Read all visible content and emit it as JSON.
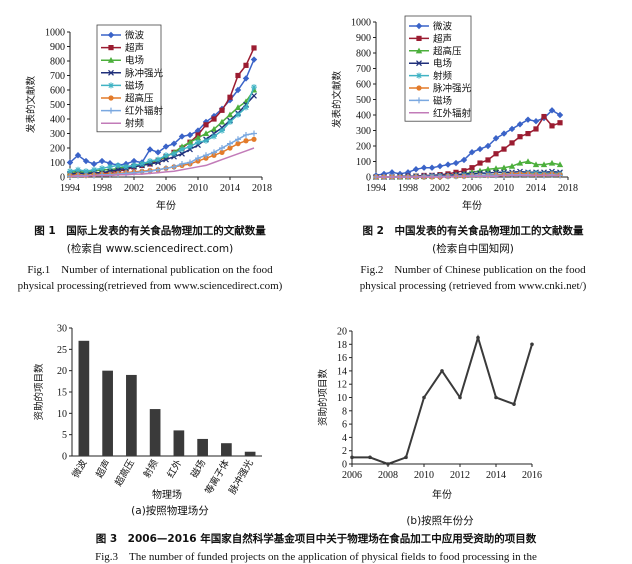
{
  "chart_data": [
    {
      "type": "line",
      "id": "fig1",
      "xlabel": "年份",
      "ylabel": "发表的文献数",
      "xlim": [
        1994,
        2018
      ],
      "ylim": [
        0,
        1000
      ],
      "xticks": [
        1994,
        1998,
        2002,
        2006,
        2010,
        2014,
        2018
      ],
      "yticks": [
        0,
        100,
        200,
        300,
        400,
        500,
        600,
        700,
        800,
        900,
        1000
      ],
      "legend_position": "top-left",
      "x": [
        1994,
        1995,
        1996,
        1997,
        1998,
        1999,
        2000,
        2001,
        2002,
        2003,
        2004,
        2005,
        2006,
        2007,
        2008,
        2009,
        2010,
        2011,
        2012,
        2013,
        2014,
        2015,
        2016,
        2017
      ],
      "series": [
        {
          "name": "微波",
          "color": "#3a63c8",
          "marker": "diamond",
          "values": [
            100,
            150,
            110,
            90,
            110,
            95,
            80,
            90,
            110,
            100,
            190,
            170,
            210,
            230,
            280,
            290,
            320,
            380,
            420,
            470,
            530,
            600,
            680,
            810
          ]
        },
        {
          "name": "超声",
          "color": "#9b1c31",
          "marker": "square",
          "values": [
            20,
            30,
            20,
            30,
            25,
            30,
            40,
            50,
            70,
            80,
            90,
            110,
            140,
            170,
            200,
            240,
            290,
            360,
            400,
            460,
            550,
            700,
            770,
            890
          ]
        },
        {
          "name": "电场",
          "color": "#4caf3c",
          "marker": "triangle",
          "values": [
            30,
            40,
            30,
            40,
            50,
            50,
            60,
            70,
            80,
            90,
            100,
            120,
            140,
            170,
            210,
            240,
            270,
            300,
            330,
            380,
            430,
            480,
            520,
            600
          ]
        },
        {
          "name": "脉冲强光",
          "color": "#1f2f7a",
          "marker": "x",
          "values": [
            20,
            25,
            25,
            30,
            30,
            40,
            50,
            60,
            70,
            80,
            90,
            100,
            120,
            140,
            160,
            190,
            220,
            260,
            300,
            340,
            390,
            440,
            500,
            560
          ]
        },
        {
          "name": "磁场",
          "color": "#40b3c4",
          "marker": "star",
          "values": [
            40,
            50,
            40,
            50,
            60,
            70,
            80,
            70,
            80,
            90,
            110,
            120,
            150,
            160,
            190,
            210,
            240,
            250,
            280,
            320,
            380,
            430,
            480,
            620
          ]
        },
        {
          "name": "超高压",
          "color": "#e37b2a",
          "marker": "circle",
          "values": [
            10,
            15,
            10,
            15,
            20,
            20,
            25,
            30,
            35,
            40,
            45,
            50,
            60,
            70,
            80,
            90,
            110,
            130,
            150,
            170,
            200,
            230,
            250,
            260
          ]
        },
        {
          "name": "红外辐射",
          "color": "#7aa8e0",
          "marker": "plus",
          "values": [
            5,
            10,
            10,
            10,
            15,
            15,
            20,
            25,
            30,
            35,
            40,
            50,
            60,
            70,
            90,
            100,
            130,
            150,
            170,
            200,
            230,
            260,
            290,
            300
          ]
        },
        {
          "name": "射频",
          "color": "#c27bb8",
          "marker": "none",
          "values": [
            5,
            5,
            5,
            10,
            10,
            10,
            15,
            15,
            20,
            20,
            25,
            30,
            35,
            40,
            50,
            60,
            70,
            80,
            100,
            120,
            140,
            160,
            180,
            200
          ]
        }
      ]
    },
    {
      "type": "line",
      "id": "fig2",
      "xlabel": "年份",
      "ylabel": "发表的文献数",
      "xlim": [
        1994,
        2018
      ],
      "ylim": [
        0,
        1000
      ],
      "xticks": [
        1994,
        1998,
        2002,
        2006,
        2010,
        2014,
        2018
      ],
      "yticks": [
        0,
        100,
        200,
        300,
        400,
        500,
        600,
        700,
        800,
        900,
        1000
      ],
      "legend_position": "top-left",
      "x": [
        1994,
        1995,
        1996,
        1997,
        1998,
        1999,
        2000,
        2001,
        2002,
        2003,
        2004,
        2005,
        2006,
        2007,
        2008,
        2009,
        2010,
        2011,
        2012,
        2013,
        2014,
        2015,
        2016,
        2017
      ],
      "series": [
        {
          "name": "微波",
          "color": "#3a63c8",
          "marker": "diamond",
          "values": [
            10,
            20,
            30,
            20,
            30,
            50,
            60,
            60,
            70,
            80,
            90,
            110,
            160,
            180,
            200,
            250,
            280,
            310,
            340,
            370,
            360,
            380,
            430,
            400
          ]
        },
        {
          "name": "超声",
          "color": "#9b1c31",
          "marker": "square",
          "values": [
            0,
            0,
            0,
            0,
            5,
            5,
            10,
            10,
            15,
            20,
            30,
            40,
            60,
            90,
            110,
            150,
            180,
            220,
            260,
            280,
            310,
            390,
            330,
            350
          ]
        },
        {
          "name": "超高压",
          "color": "#4caf3c",
          "marker": "triangle",
          "values": [
            0,
            0,
            0,
            0,
            0,
            5,
            5,
            5,
            10,
            10,
            15,
            20,
            30,
            40,
            50,
            55,
            60,
            70,
            90,
            100,
            80,
            80,
            90,
            80
          ]
        },
        {
          "name": "电场",
          "color": "#1f2f7a",
          "marker": "x",
          "values": [
            0,
            0,
            0,
            5,
            5,
            5,
            5,
            10,
            10,
            10,
            15,
            20,
            20,
            25,
            25,
            30,
            30,
            30,
            35,
            30,
            30,
            30,
            35,
            30
          ]
        },
        {
          "name": "射频",
          "color": "#40b3c4",
          "marker": "star",
          "values": [
            0,
            0,
            0,
            0,
            0,
            0,
            0,
            5,
            5,
            5,
            5,
            10,
            10,
            10,
            15,
            15,
            20,
            20,
            20,
            25,
            25,
            20,
            25,
            20
          ]
        },
        {
          "name": "脉冲强光",
          "color": "#e37b2a",
          "marker": "circle",
          "values": [
            0,
            0,
            0,
            0,
            0,
            0,
            0,
            0,
            0,
            5,
            5,
            5,
            10,
            10,
            10,
            15,
            15,
            20,
            20,
            20,
            15,
            15,
            20,
            15
          ]
        },
        {
          "name": "磁场",
          "color": "#7aa8e0",
          "marker": "plus",
          "values": [
            0,
            0,
            0,
            0,
            0,
            0,
            5,
            5,
            5,
            5,
            5,
            5,
            10,
            10,
            10,
            10,
            10,
            15,
            15,
            15,
            10,
            10,
            15,
            10
          ]
        },
        {
          "name": "红外辐射",
          "color": "#c27bb8",
          "marker": "none",
          "values": [
            0,
            0,
            0,
            0,
            0,
            0,
            0,
            0,
            0,
            0,
            5,
            5,
            5,
            5,
            5,
            5,
            10,
            10,
            10,
            10,
            10,
            10,
            10,
            10
          ]
        }
      ]
    },
    {
      "type": "bar",
      "id": "fig3a",
      "xlabel": "物理场",
      "ylabel": "资助的项目数",
      "ylim": [
        0,
        30
      ],
      "yticks": [
        0,
        5,
        10,
        15,
        20,
        25,
        30
      ],
      "categories": [
        "微波",
        "超声",
        "超高压",
        "射频",
        "红外",
        "磁场",
        "等离子体",
        "脉冲强光"
      ],
      "values": [
        27,
        20,
        19,
        11,
        6,
        4,
        3,
        1
      ],
      "color": "#3a3a3a",
      "subtitle": "(a)按照物理场分"
    },
    {
      "type": "line",
      "id": "fig3b",
      "xlabel": "年份",
      "ylabel": "资助的项目数",
      "xlim": [
        2006,
        2016
      ],
      "ylim": [
        0,
        20
      ],
      "xticks": [
        2006,
        2008,
        2010,
        2012,
        2014,
        2016
      ],
      "yticks": [
        0,
        2,
        4,
        6,
        8,
        10,
        12,
        14,
        16,
        18,
        20
      ],
      "x": [
        2006,
        2007,
        2008,
        2009,
        2010,
        2011,
        2012,
        2013,
        2014,
        2015,
        2016
      ],
      "values": [
        1,
        1,
        0,
        1,
        10,
        14,
        10,
        19,
        10,
        9,
        18
      ],
      "color": "#3a3a3a",
      "subtitle": "(b)按照年份分"
    }
  ],
  "captions": {
    "fig1_zh": "图 1　国际上发表的有关食品物理加工的文献数量",
    "fig1_zh2": "(检索自 www.sciencedirect.com)",
    "fig1_en1": "Fig.1　Number of international publication on the food",
    "fig1_en2": "physical processing(retrieved from www.sciencedirect.com)",
    "fig2_zh": "图 2　中国发表的有关食品物理加工的文献数量",
    "fig2_zh2": "(检索自中国知网)",
    "fig2_en1": "Fig.2　Number of Chinese publication on the food",
    "fig2_en2": "physical processing (retrieved from www.cnki.net/)",
    "fig3_zh": "图 3　2006—2016 年国家自然科学基金项目中关于物理场在食品加工中应用受资助的项目数",
    "fig3_en": "Fig.3　The number of funded projects on the application of physical fields to food processing in the"
  }
}
